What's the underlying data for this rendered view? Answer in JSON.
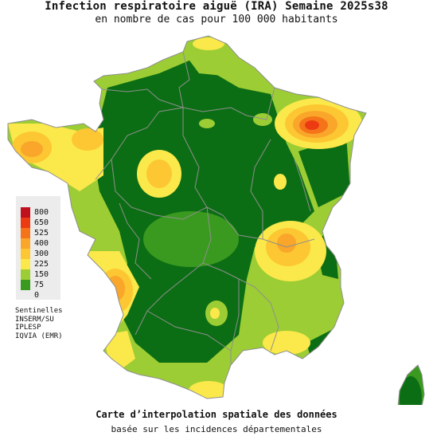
{
  "title": "Infection respiratoire aiguë (IRA) Semaine 2025s38",
  "subtitle": "en nombre de cas pour 100 000 habitants",
  "legend": [
    {
      "label": "800",
      "color": "#c0101e"
    },
    {
      "label": "650",
      "color": "#ec3a12"
    },
    {
      "label": "525",
      "color": "#f57419"
    },
    {
      "label": "400",
      "color": "#f9a62a"
    },
    {
      "label": "300",
      "color": "#fcc732"
    },
    {
      "label": "225",
      "color": "#fbe84a"
    },
    {
      "label": "150",
      "color": "#9ccd34"
    },
    {
      "label": "75",
      "color": "#3a9a1f"
    },
    {
      "label": "0",
      "color": "#0c6e14"
    }
  ],
  "sources": [
    "Sentinelles",
    "INSERM/SU",
    "IPLESP",
    "IQVIA (EMR)"
  ],
  "footer_line1": "Carte d’interpolation spatiale des données",
  "footer_line2": "basée sur les incidences départementales"
}
